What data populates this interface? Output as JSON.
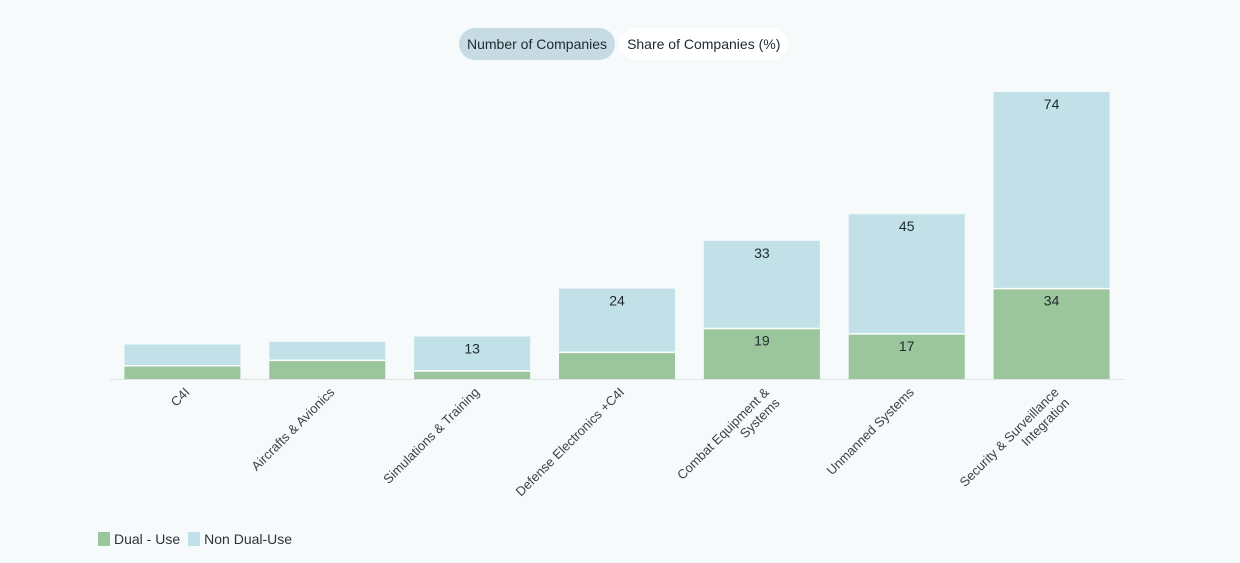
{
  "toggle": {
    "options": [
      "Number of Companies",
      "Share of Companies (%)"
    ],
    "active": 0
  },
  "colors": {
    "dual_use": "#9bc59a",
    "non_dual_use": "#c2e0e8"
  },
  "legend": {
    "items": [
      {
        "label": "Dual - Use",
        "color": "#9bc59a"
      },
      {
        "label": "Non Dual-Use",
        "color": "#c2e0e8"
      }
    ]
  },
  "chart_data": {
    "type": "bar",
    "stacked": true,
    "categories": [
      "C4I",
      "Aircrafts & Avionics",
      "Simulations & Training",
      "Defense Electronics +C4I",
      "Combat Equipment & Systems",
      "Unmanned Systems",
      "Security & Surveillance Integration"
    ],
    "series": [
      {
        "name": "Dual - Use",
        "values": [
          5,
          7,
          3,
          10,
          19,
          17,
          34
        ],
        "labels": [
          "",
          "",
          "",
          "",
          "19",
          "17",
          "34"
        ]
      },
      {
        "name": "Non Dual-Use",
        "values": [
          8,
          7,
          13,
          24,
          33,
          45,
          74
        ],
        "labels": [
          "",
          "",
          "13",
          "24",
          "33",
          "45",
          "74"
        ]
      }
    ],
    "ylim": [
      0,
      110
    ],
    "grid": false,
    "legend_position": "bottom-left"
  }
}
